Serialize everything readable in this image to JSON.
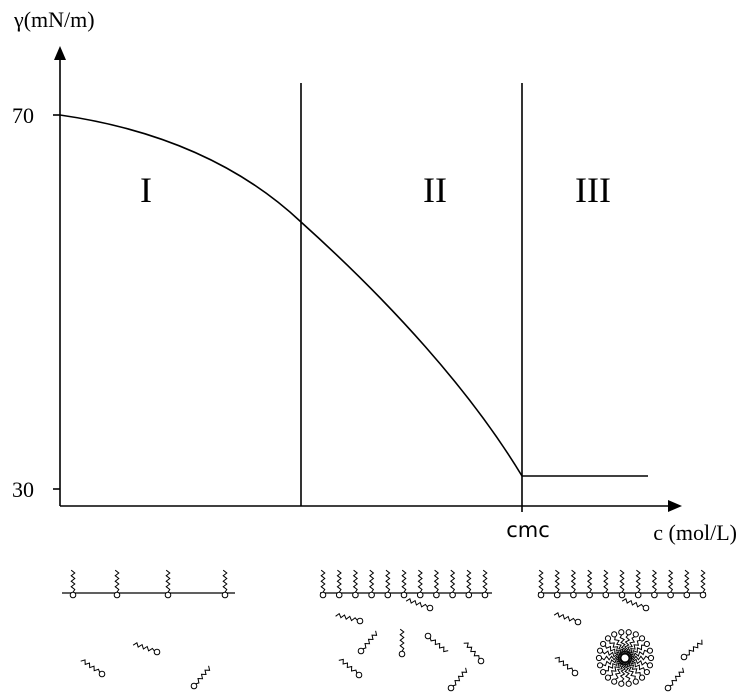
{
  "axis": {
    "y_label": "γ(mN/m)",
    "x_label": "c (mol/L)",
    "y_ticks": [
      "70",
      "30"
    ],
    "x_tick": "cmc"
  },
  "regions": [
    "I",
    "II",
    "III"
  ]
}
